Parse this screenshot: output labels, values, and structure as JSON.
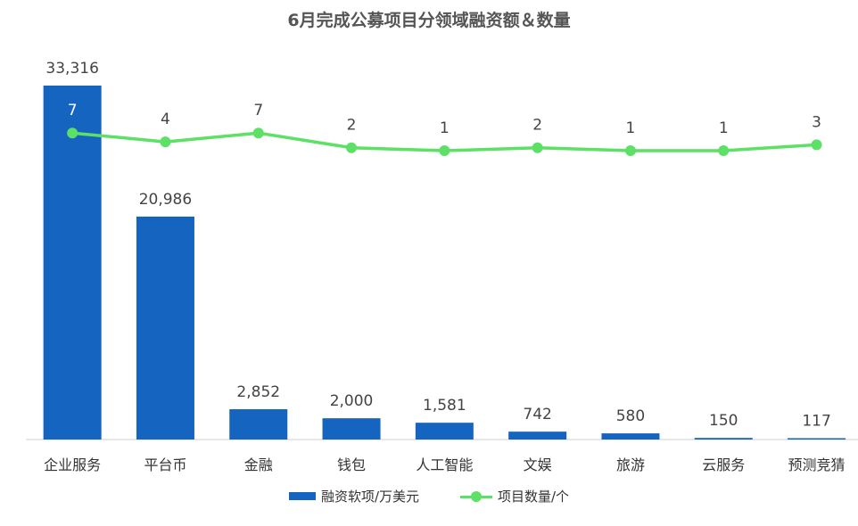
{
  "chart_data": {
    "type": "bar",
    "title": "6月完成公募项目分领域融资额＆数量",
    "categories": [
      "企业服务",
      "平台币",
      "金融",
      "钱包",
      "人工智能",
      "文娱",
      "旅游",
      "云服务",
      "预测竞猜"
    ],
    "series": [
      {
        "name": "融资软项/万美元",
        "type": "bar",
        "color": "#1565c0",
        "values": [
          33316,
          20986,
          2852,
          2000,
          1581,
          742,
          580,
          150,
          117
        ],
        "labels": [
          "33,316",
          "20,986",
          "2,852",
          "2,000",
          "1,581",
          "742",
          "580",
          "150",
          "117"
        ]
      },
      {
        "name": "项目数量/个",
        "type": "line",
        "color": "#5ce065",
        "values": [
          7,
          4,
          7,
          2,
          1,
          2,
          1,
          1,
          3
        ]
      }
    ],
    "ylim": [
      0,
      33316
    ],
    "grid": false,
    "legend": "bottom"
  }
}
